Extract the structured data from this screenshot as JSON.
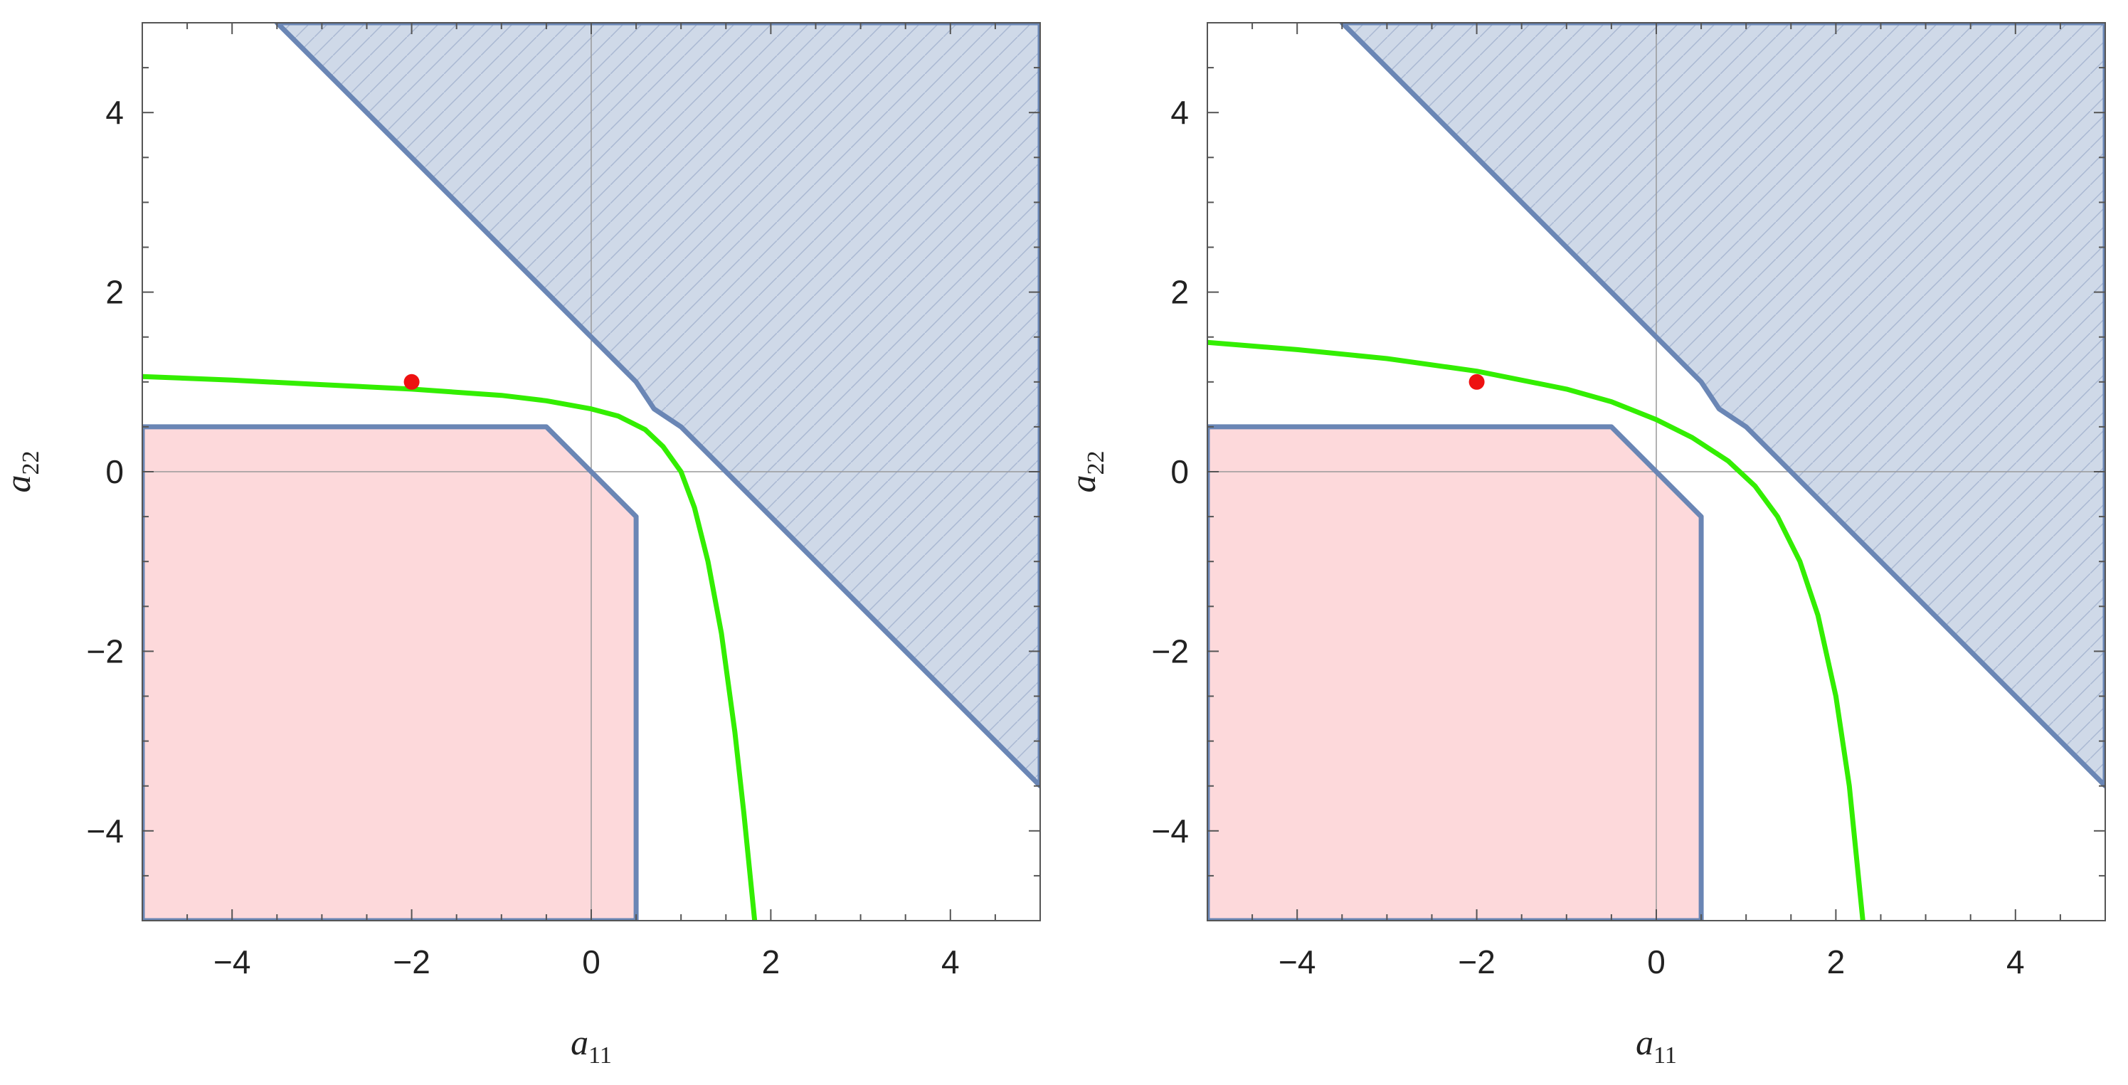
{
  "figure": {
    "panel_count": 2
  },
  "colors": {
    "blue_region_fill": "#cfd9e8",
    "blue_region_hatch": "#a9b8d2",
    "region_edge": "#6a86b5",
    "pink_region_fill": "#fdd9db",
    "green_curve": "#33ee00",
    "point": "#ee1111",
    "frame": "#555555",
    "zero_line": "#999999"
  },
  "chart_data": [
    {
      "type": "line",
      "title": "",
      "xlabel": "a",
      "xlabel_subscript": "11",
      "ylabel": "a",
      "ylabel_subscript": "22",
      "xlim": [
        -5,
        5
      ],
      "ylim": [
        -5,
        5
      ],
      "xticks": [
        "−4",
        "−2",
        "0",
        "2",
        "4"
      ],
      "yticks": [
        "−4",
        "−2",
        "0",
        "2",
        "4"
      ],
      "tick_values": [
        -4,
        -2,
        0,
        2,
        4
      ],
      "grid": false,
      "legend": "none",
      "regions": [
        {
          "name": "blue-hatched-region",
          "fill": "blue",
          "hatched": true,
          "boundary": [
            [
              -3.5,
              5
            ],
            [
              0.5,
              1.0
            ],
            [
              0.7,
              0.7
            ],
            [
              1.0,
              0.5
            ],
            [
              5,
              -3.5
            ],
            [
              5,
              5
            ]
          ]
        },
        {
          "name": "pink-region",
          "fill": "pink",
          "hatched": false,
          "boundary": [
            [
              -5,
              0.5
            ],
            [
              -0.5,
              0.5
            ],
            [
              0.5,
              -0.5
            ],
            [
              0.5,
              -5
            ],
            [
              -5,
              -5
            ]
          ]
        }
      ],
      "series": [
        {
          "style": "green-curve",
          "x": [
            -5,
            -4,
            -3,
            -2,
            -1,
            -0.5,
            0,
            0.3,
            0.6,
            0.8,
            1.0,
            1.15,
            1.3,
            1.45,
            1.6,
            1.7,
            1.82
          ],
          "y": [
            1.06,
            1.02,
            0.97,
            0.92,
            0.85,
            0.79,
            0.7,
            0.62,
            0.47,
            0.28,
            0.0,
            -0.4,
            -1.0,
            -1.8,
            -2.9,
            -3.8,
            -5.0
          ]
        }
      ],
      "points": [
        {
          "x": -2,
          "y": 1
        }
      ]
    },
    {
      "type": "line",
      "title": "",
      "xlabel": "a",
      "xlabel_subscript": "11",
      "ylabel": "a",
      "ylabel_subscript": "22",
      "xlim": [
        -5,
        5
      ],
      "ylim": [
        -5,
        5
      ],
      "xticks": [
        "−4",
        "−2",
        "0",
        "2",
        "4"
      ],
      "yticks": [
        "−4",
        "−2",
        "0",
        "2",
        "4"
      ],
      "tick_values": [
        -4,
        -2,
        0,
        2,
        4
      ],
      "grid": false,
      "legend": "none",
      "regions": [
        {
          "name": "blue-hatched-region",
          "fill": "blue",
          "hatched": true,
          "boundary": [
            [
              -3.5,
              5
            ],
            [
              0.5,
              1.0
            ],
            [
              0.7,
              0.7
            ],
            [
              1.0,
              0.5
            ],
            [
              5,
              -3.5
            ],
            [
              5,
              5
            ]
          ]
        },
        {
          "name": "pink-region",
          "fill": "pink",
          "hatched": false,
          "boundary": [
            [
              -5,
              0.5
            ],
            [
              -0.5,
              0.5
            ],
            [
              0.5,
              -0.5
            ],
            [
              0.5,
              -5
            ],
            [
              -5,
              -5
            ]
          ]
        }
      ],
      "series": [
        {
          "style": "green-curve",
          "x": [
            -5,
            -4,
            -3,
            -2,
            -1,
            -0.5,
            0,
            0.4,
            0.8,
            1.1,
            1.35,
            1.6,
            1.8,
            2.0,
            2.15,
            2.3
          ],
          "y": [
            1.44,
            1.36,
            1.26,
            1.12,
            0.92,
            0.78,
            0.58,
            0.38,
            0.12,
            -0.16,
            -0.5,
            -1.0,
            -1.6,
            -2.5,
            -3.5,
            -5.0
          ]
        }
      ],
      "points": [
        {
          "x": -2,
          "y": 1
        }
      ]
    }
  ]
}
